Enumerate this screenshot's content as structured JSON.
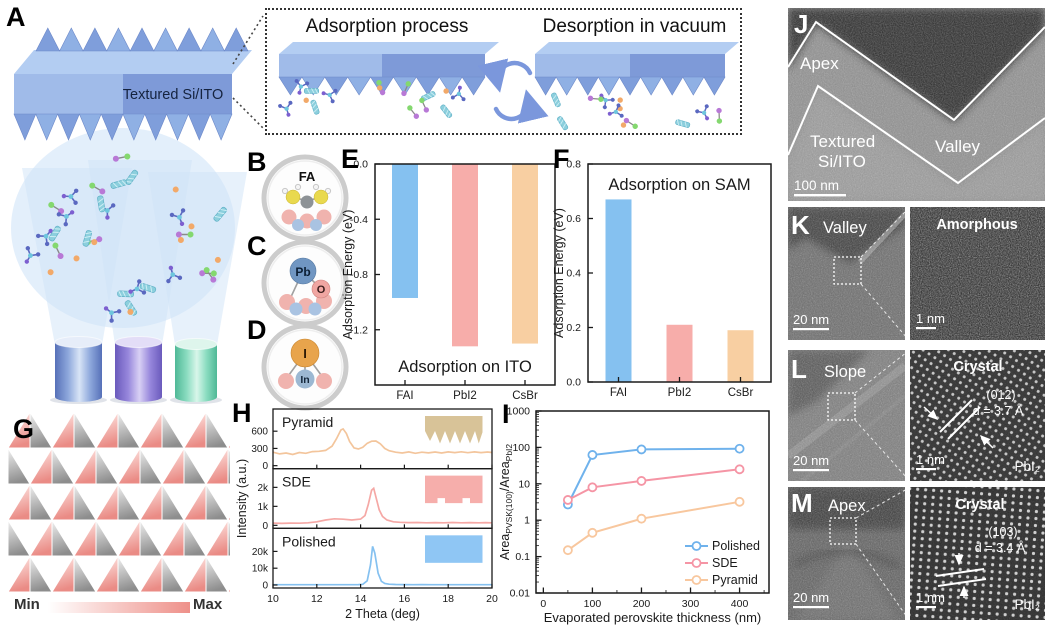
{
  "panel_letters": {
    "A": "A",
    "B": "B",
    "C": "C",
    "D": "D",
    "E": "E",
    "F": "F",
    "G": "G",
    "H": "H",
    "I": "I",
    "J": "J",
    "K": "K",
    "L": "L",
    "M": "M"
  },
  "panelA": {
    "slab_label": "Textured Si/ITO"
  },
  "inset": {
    "left_title": "Adsorption process",
    "right_title": "Desorption in vacuum"
  },
  "molecules": {
    "B": {
      "name": "FA"
    },
    "C": {
      "a": "Pb",
      "b": "O"
    },
    "D": {
      "a": "I",
      "b": "In"
    }
  },
  "panelG": {
    "min_label": "Min",
    "max_label": "Max"
  },
  "tem": {
    "J": {
      "apex": "Apex",
      "substrate1": "Textured",
      "substrate2": "Si/ITO",
      "valley": "Valley",
      "scale": "100 nm"
    },
    "K": {
      "label": "Valley",
      "scale": "20 nm",
      "zoom_label": "Amorphous",
      "zoom_scale": "1 nm"
    },
    "L": {
      "label": "Slope",
      "scale": "20 nm",
      "zoom_label": "Crystal",
      "plane": "(012)",
      "d": "d = 3.7 Å",
      "material": "PbI₂",
      "zoom_scale": "1 nm"
    },
    "M": {
      "label": "Apex",
      "scale": "20 nm",
      "zoom_label": "Crystal",
      "plane": "(103)",
      "d": "d = 3.4 Å",
      "material": "PbI₂",
      "zoom_scale": "1 nm"
    }
  },
  "chart_data": [
    {
      "panel": "E",
      "type": "bar",
      "title": "Adsorption on ITO",
      "ylabel": "Adsorption Energy (eV)",
      "categories": [
        "FAI",
        "PbI2",
        "CsBr"
      ],
      "values": [
        -0.97,
        -1.32,
        -1.3
      ],
      "ylim": [
        -1.6,
        0
      ],
      "yticks": [
        0,
        -0.4,
        -0.8,
        -1.2
      ],
      "bar_colors": [
        "#85c1f0",
        "#f7adaa",
        "#f8cfa2"
      ]
    },
    {
      "panel": "F",
      "type": "bar",
      "title": "Adsorption on SAM",
      "ylabel": "Adsorption Energy (eV)",
      "categories": [
        "FAI",
        "PbI2",
        "CsBr"
      ],
      "values": [
        0.67,
        0.21,
        0.19
      ],
      "ylim": [
        0,
        0.8
      ],
      "yticks": [
        0,
        0.2,
        0.4,
        0.6,
        0.8
      ],
      "bar_colors": [
        "#85c1f0",
        "#f7adaa",
        "#f8cfa2"
      ]
    },
    {
      "panel": "H",
      "type": "line",
      "xlabel": "2 Theta (deg)",
      "ylabel": "Intensity (a.u.)",
      "xlim": [
        10,
        20
      ],
      "xticks": [
        10,
        12,
        14,
        16,
        18,
        20
      ],
      "subplots": [
        {
          "name": "Pyramid",
          "color": "#f3c59c",
          "icon": "pyramid",
          "ymax": 760,
          "yticks": [
            [
              0,
              "0"
            ],
            [
              300,
              "300"
            ],
            [
              600,
              "600"
            ]
          ],
          "points": [
            [
              10,
              235
            ],
            [
              10.3,
              205
            ],
            [
              10.6,
              220
            ],
            [
              10.9,
              195
            ],
            [
              11.2,
              230
            ],
            [
              11.5,
              215
            ],
            [
              11.8,
              245
            ],
            [
              12.1,
              250
            ],
            [
              12.4,
              265
            ],
            [
              12.7,
              340
            ],
            [
              12.9,
              470
            ],
            [
              13.1,
              620
            ],
            [
              13.2,
              640
            ],
            [
              13.35,
              560
            ],
            [
              13.5,
              420
            ],
            [
              13.7,
              310
            ],
            [
              13.9,
              290
            ],
            [
              14.1,
              320
            ],
            [
              14.3,
              390
            ],
            [
              14.5,
              425
            ],
            [
              14.7,
              430
            ],
            [
              14.9,
              380
            ],
            [
              15.1,
              300
            ],
            [
              15.3,
              260
            ],
            [
              15.6,
              235
            ],
            [
              15.9,
              220
            ],
            [
              16.2,
              240
            ],
            [
              16.5,
              215
            ],
            [
              16.8,
              235
            ],
            [
              17.1,
              222
            ],
            [
              17.4,
              238
            ],
            [
              17.7,
              220
            ],
            [
              18,
              240
            ],
            [
              18.3,
              228
            ],
            [
              18.6,
              242
            ],
            [
              18.9,
              225
            ],
            [
              19.2,
              240
            ],
            [
              19.5,
              228
            ],
            [
              19.8,
              238
            ],
            [
              20,
              230
            ]
          ]
        },
        {
          "name": "SDE",
          "color": "#f5a8a5",
          "icon": "sde",
          "ymax": 2300,
          "yticks": [
            [
              0,
              "0"
            ],
            [
              1000,
              "1k"
            ],
            [
              2000,
              "2k"
            ]
          ],
          "points": [
            [
              10,
              115
            ],
            [
              10.4,
              100
            ],
            [
              10.8,
              120
            ],
            [
              11.2,
              110
            ],
            [
              11.6,
              135
            ],
            [
              12,
              185
            ],
            [
              12.4,
              280
            ],
            [
              12.8,
              345
            ],
            [
              13.2,
              325
            ],
            [
              13.6,
              280
            ],
            [
              14,
              330
            ],
            [
              14.2,
              520
            ],
            [
              14.35,
              1100
            ],
            [
              14.5,
              1850
            ],
            [
              14.6,
              1950
            ],
            [
              14.7,
              1500
            ],
            [
              14.85,
              820
            ],
            [
              15,
              470
            ],
            [
              15.2,
              280
            ],
            [
              15.5,
              185
            ],
            [
              15.8,
              160
            ],
            [
              16.2,
              145
            ],
            [
              16.6,
              150
            ],
            [
              17,
              135
            ],
            [
              17.4,
              145
            ],
            [
              17.8,
              132
            ],
            [
              18.2,
              148
            ],
            [
              18.6,
              135
            ],
            [
              19,
              145
            ],
            [
              19.4,
              132
            ],
            [
              19.7,
              142
            ],
            [
              20,
              135
            ]
          ]
        },
        {
          "name": "Polished",
          "color": "#85c1f0",
          "icon": "polished",
          "ymax": 26000,
          "yticks": [
            [
              0,
              "0"
            ],
            [
              10000,
              "10k"
            ],
            [
              20000,
              "20k"
            ]
          ],
          "points": [
            [
              10,
              170
            ],
            [
              10.5,
              165
            ],
            [
              11,
              175
            ],
            [
              11.5,
              168
            ],
            [
              12,
              178
            ],
            [
              12.5,
              170
            ],
            [
              13,
              180
            ],
            [
              13.5,
              195
            ],
            [
              13.9,
              240
            ],
            [
              14.1,
              420
            ],
            [
              14.3,
              2500
            ],
            [
              14.45,
              12000
            ],
            [
              14.55,
              23000
            ],
            [
              14.65,
              19000
            ],
            [
              14.8,
              7000
            ],
            [
              14.95,
              2200
            ],
            [
              15.1,
              900
            ],
            [
              15.3,
              450
            ],
            [
              15.6,
              280
            ],
            [
              16,
              230
            ],
            [
              16.4,
              205
            ],
            [
              16.8,
              210
            ],
            [
              17.2,
              198
            ],
            [
              17.6,
              205
            ],
            [
              18,
              195
            ],
            [
              18.4,
              205
            ],
            [
              18.8,
              195
            ],
            [
              19.2,
              202
            ],
            [
              19.6,
              195
            ],
            [
              20,
              200
            ]
          ]
        }
      ]
    },
    {
      "panel": "I",
      "type": "line",
      "yscale": "log",
      "xlabel": "Evaporated perovskite thickness (nm)",
      "ylabel_parts": [
        {
          "t": "Area"
        },
        {
          "t": "PVSK(100)",
          "sub": true
        },
        {
          "t": "/Area"
        },
        {
          "t": "PbI2",
          "sub": true
        }
      ],
      "xlim": [
        0,
        450
      ],
      "xticks": [
        0,
        100,
        200,
        300,
        400
      ],
      "ylim": [
        0.01,
        1000
      ],
      "yticks": [
        1000,
        100,
        10,
        1,
        0.1,
        0.01
      ],
      "x": [
        50,
        100,
        200,
        400
      ],
      "series": [
        {
          "name": "Polished",
          "color": "#6fb2ec",
          "values": [
            2.7,
            62,
            88,
            92
          ]
        },
        {
          "name": "SDE",
          "color": "#f595a5",
          "values": [
            3.6,
            8,
            12,
            25
          ]
        },
        {
          "name": "Pyramid",
          "color": "#f8c79e",
          "values": [
            0.15,
            0.45,
            1.1,
            3.2
          ]
        }
      ]
    }
  ]
}
